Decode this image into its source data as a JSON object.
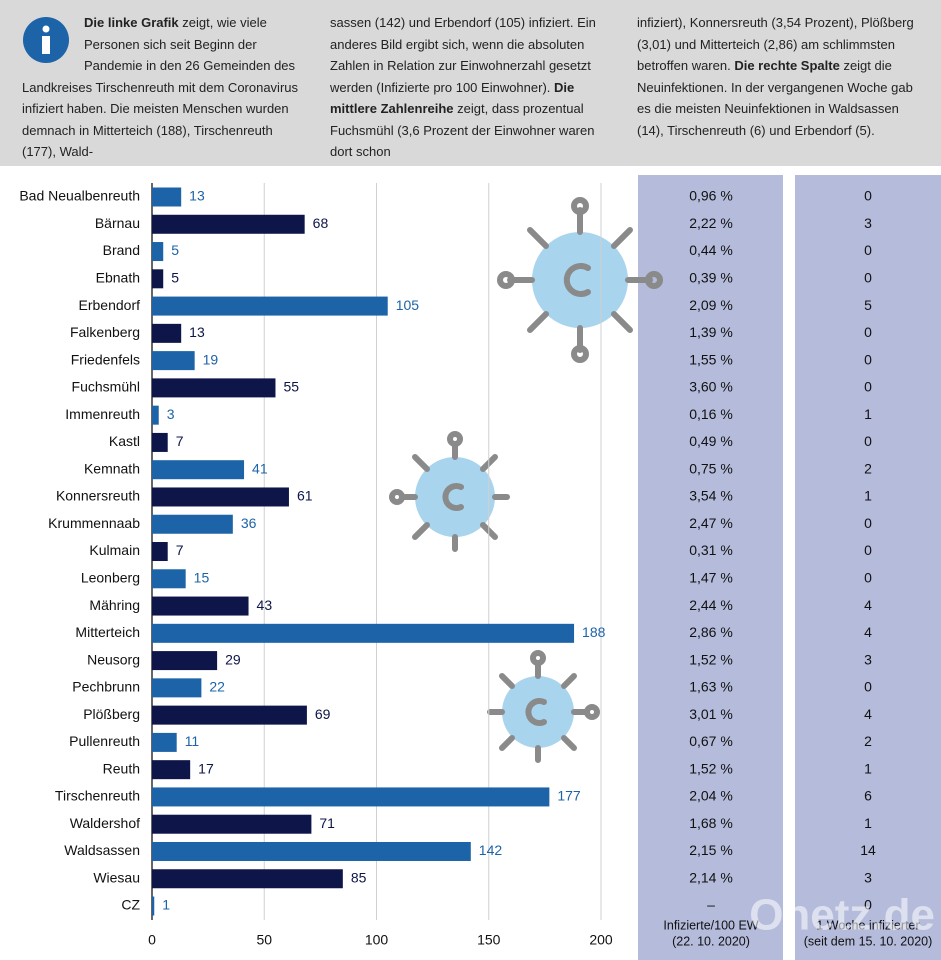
{
  "intro": [
    [
      {
        "text": "Die linke Grafik",
        "bold": true
      },
      {
        "text": " zeigt, wie viele Personen sich seit Beginn der Pandemie in den 26 Gemeinden des Landkreises Tirschenreuth mit dem Coronavirus infiziert haben. Die meisten Menschen wurden demnach in Mitterteich (188), Tirschenreuth (177), Wald-",
        "bold": false
      }
    ],
    [
      {
        "text": "sassen (142) und Erbendorf (105) infiziert. Ein anderes Bild ergibt sich, wenn die absoluten Zahlen in Relation zur Einwohnerzahl gesetzt werden (Infizierte pro 100 Einwohner). ",
        "bold": false
      },
      {
        "text": "Die mittlere Zahlenreihe",
        "bold": true
      },
      {
        "text": " zeigt, dass prozentual Fuchsmühl (3,6 Prozent der Einwohner waren dort schon",
        "bold": false
      }
    ],
    [
      {
        "text": "infiziert), Konnersreuth (3,54 Prozent), Plößberg (3,01) und Mitterteich (2,86) am schlimmsten betroffen waren. ",
        "bold": false
      },
      {
        "text": "Die rechte Spalte",
        "bold": true
      },
      {
        "text": " zeigt die Neuinfektionen. In der vergangenen Woche gab es die meisten Neuinfektionen in Waldsassen (14), Tirschenreuth (6) und Erbendorf (5).",
        "bold": false
      }
    ]
  ],
  "chart_data": {
    "type": "hbar",
    "categories": [
      "Bad Neualbenreuth",
      "Bärnau",
      "Brand",
      "Ebnath",
      "Erbendorf",
      "Falkenberg",
      "Friedenfels",
      "Fuchsmühl",
      "Immenreuth",
      "Kastl",
      "Kemnath",
      "Konnersreuth",
      "Krummennaab",
      "Kulmain",
      "Leonberg",
      "Mähring",
      "Mitterteich",
      "Neusorg",
      "Pechbrunn",
      "Plößberg",
      "Pullenreuth",
      "Reuth",
      "Tirschenreuth",
      "Waldershof",
      "Waldsassen",
      "Wiesau",
      "CZ"
    ],
    "values": [
      13,
      68,
      5,
      5,
      105,
      13,
      19,
      55,
      3,
      7,
      41,
      61,
      36,
      7,
      15,
      43,
      188,
      29,
      22,
      69,
      11,
      17,
      177,
      71,
      142,
      85,
      1
    ],
    "colors": [
      "#1c63a8",
      "#0d1549"
    ],
    "xlim": [
      0,
      200
    ],
    "xticks": [
      0,
      50,
      100,
      150,
      200
    ],
    "grid": true
  },
  "columns": [
    {
      "header": [
        "Infizierte/100 EW",
        "(22. 10. 2020)"
      ],
      "values": [
        "0,96 %",
        "2,22 %",
        "0,44 %",
        "0,39 %",
        "2,09 %",
        "1,39 %",
        "1,55 %",
        "3,60 %",
        "0,16 %",
        "0,49 %",
        "0,75 %",
        "3,54 %",
        "2,47 %",
        "0,31 %",
        "1,47 %",
        "2,44 %",
        "2,86 %",
        "1,52 %",
        "1,63 %",
        "3,01 %",
        "0,67 %",
        "1,52 %",
        "2,04 %",
        "1,68 %",
        "2,15 %",
        "2,14 %",
        "–"
      ]
    },
    {
      "header": [
        "1 Woche infizierter",
        "(seit dem 15. 10. 2020)"
      ],
      "values": [
        0,
        3,
        0,
        0,
        5,
        0,
        0,
        0,
        1,
        0,
        2,
        1,
        0,
        0,
        0,
        4,
        4,
        3,
        0,
        4,
        2,
        1,
        6,
        1,
        14,
        3,
        0
      ]
    }
  ],
  "watermark": "Onetz.de"
}
